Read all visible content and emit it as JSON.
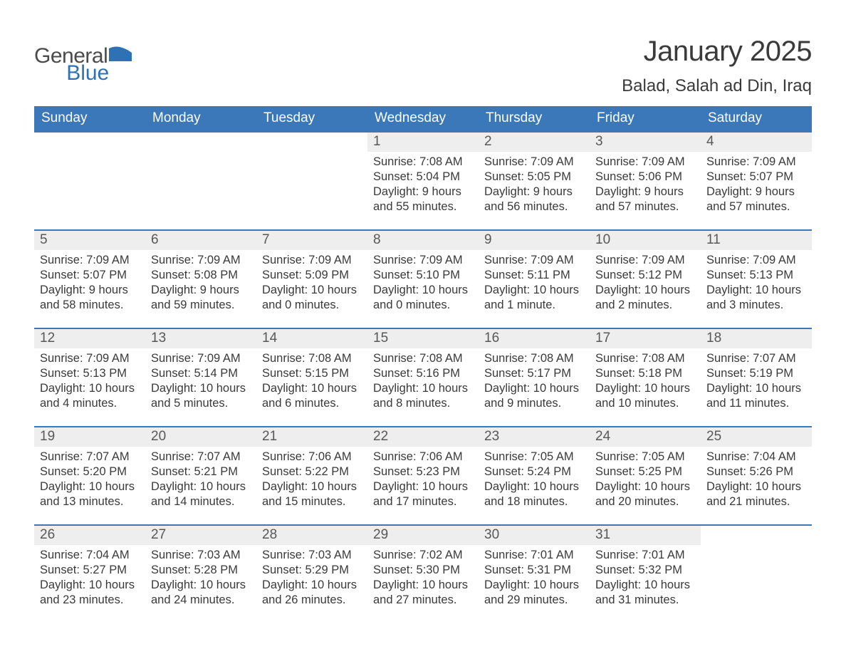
{
  "logo": {
    "word1": "General",
    "word2": "Blue",
    "mark_color": "#2e72b5",
    "text_gray": "#4b4b4b"
  },
  "title": "January 2025",
  "location": "Balad, Salah ad Din, Iraq",
  "colors": {
    "header_bg": "#3a78b9",
    "header_text": "#ffffff",
    "daynum_bg": "#eeeeee",
    "cell_border": "#3a78b9",
    "body_text": "#3a3a3a"
  },
  "weekdays": [
    "Sunday",
    "Monday",
    "Tuesday",
    "Wednesday",
    "Thursday",
    "Friday",
    "Saturday"
  ],
  "weeks": [
    [
      null,
      null,
      null,
      {
        "n": "1",
        "sunrise": "Sunrise: 7:08 AM",
        "sunset": "Sunset: 5:04 PM",
        "daylight": "Daylight: 9 hours and 55 minutes."
      },
      {
        "n": "2",
        "sunrise": "Sunrise: 7:09 AM",
        "sunset": "Sunset: 5:05 PM",
        "daylight": "Daylight: 9 hours and 56 minutes."
      },
      {
        "n": "3",
        "sunrise": "Sunrise: 7:09 AM",
        "sunset": "Sunset: 5:06 PM",
        "daylight": "Daylight: 9 hours and 57 minutes."
      },
      {
        "n": "4",
        "sunrise": "Sunrise: 7:09 AM",
        "sunset": "Sunset: 5:07 PM",
        "daylight": "Daylight: 9 hours and 57 minutes."
      }
    ],
    [
      {
        "n": "5",
        "sunrise": "Sunrise: 7:09 AM",
        "sunset": "Sunset: 5:07 PM",
        "daylight": "Daylight: 9 hours and 58 minutes."
      },
      {
        "n": "6",
        "sunrise": "Sunrise: 7:09 AM",
        "sunset": "Sunset: 5:08 PM",
        "daylight": "Daylight: 9 hours and 59 minutes."
      },
      {
        "n": "7",
        "sunrise": "Sunrise: 7:09 AM",
        "sunset": "Sunset: 5:09 PM",
        "daylight": "Daylight: 10 hours and 0 minutes."
      },
      {
        "n": "8",
        "sunrise": "Sunrise: 7:09 AM",
        "sunset": "Sunset: 5:10 PM",
        "daylight": "Daylight: 10 hours and 0 minutes."
      },
      {
        "n": "9",
        "sunrise": "Sunrise: 7:09 AM",
        "sunset": "Sunset: 5:11 PM",
        "daylight": "Daylight: 10 hours and 1 minute."
      },
      {
        "n": "10",
        "sunrise": "Sunrise: 7:09 AM",
        "sunset": "Sunset: 5:12 PM",
        "daylight": "Daylight: 10 hours and 2 minutes."
      },
      {
        "n": "11",
        "sunrise": "Sunrise: 7:09 AM",
        "sunset": "Sunset: 5:13 PM",
        "daylight": "Daylight: 10 hours and 3 minutes."
      }
    ],
    [
      {
        "n": "12",
        "sunrise": "Sunrise: 7:09 AM",
        "sunset": "Sunset: 5:13 PM",
        "daylight": "Daylight: 10 hours and 4 minutes."
      },
      {
        "n": "13",
        "sunrise": "Sunrise: 7:09 AM",
        "sunset": "Sunset: 5:14 PM",
        "daylight": "Daylight: 10 hours and 5 minutes."
      },
      {
        "n": "14",
        "sunrise": "Sunrise: 7:08 AM",
        "sunset": "Sunset: 5:15 PM",
        "daylight": "Daylight: 10 hours and 6 minutes."
      },
      {
        "n": "15",
        "sunrise": "Sunrise: 7:08 AM",
        "sunset": "Sunset: 5:16 PM",
        "daylight": "Daylight: 10 hours and 8 minutes."
      },
      {
        "n": "16",
        "sunrise": "Sunrise: 7:08 AM",
        "sunset": "Sunset: 5:17 PM",
        "daylight": "Daylight: 10 hours and 9 minutes."
      },
      {
        "n": "17",
        "sunrise": "Sunrise: 7:08 AM",
        "sunset": "Sunset: 5:18 PM",
        "daylight": "Daylight: 10 hours and 10 minutes."
      },
      {
        "n": "18",
        "sunrise": "Sunrise: 7:07 AM",
        "sunset": "Sunset: 5:19 PM",
        "daylight": "Daylight: 10 hours and 11 minutes."
      }
    ],
    [
      {
        "n": "19",
        "sunrise": "Sunrise: 7:07 AM",
        "sunset": "Sunset: 5:20 PM",
        "daylight": "Daylight: 10 hours and 13 minutes."
      },
      {
        "n": "20",
        "sunrise": "Sunrise: 7:07 AM",
        "sunset": "Sunset: 5:21 PM",
        "daylight": "Daylight: 10 hours and 14 minutes."
      },
      {
        "n": "21",
        "sunrise": "Sunrise: 7:06 AM",
        "sunset": "Sunset: 5:22 PM",
        "daylight": "Daylight: 10 hours and 15 minutes."
      },
      {
        "n": "22",
        "sunrise": "Sunrise: 7:06 AM",
        "sunset": "Sunset: 5:23 PM",
        "daylight": "Daylight: 10 hours and 17 minutes."
      },
      {
        "n": "23",
        "sunrise": "Sunrise: 7:05 AM",
        "sunset": "Sunset: 5:24 PM",
        "daylight": "Daylight: 10 hours and 18 minutes."
      },
      {
        "n": "24",
        "sunrise": "Sunrise: 7:05 AM",
        "sunset": "Sunset: 5:25 PM",
        "daylight": "Daylight: 10 hours and 20 minutes."
      },
      {
        "n": "25",
        "sunrise": "Sunrise: 7:04 AM",
        "sunset": "Sunset: 5:26 PM",
        "daylight": "Daylight: 10 hours and 21 minutes."
      }
    ],
    [
      {
        "n": "26",
        "sunrise": "Sunrise: 7:04 AM",
        "sunset": "Sunset: 5:27 PM",
        "daylight": "Daylight: 10 hours and 23 minutes."
      },
      {
        "n": "27",
        "sunrise": "Sunrise: 7:03 AM",
        "sunset": "Sunset: 5:28 PM",
        "daylight": "Daylight: 10 hours and 24 minutes."
      },
      {
        "n": "28",
        "sunrise": "Sunrise: 7:03 AM",
        "sunset": "Sunset: 5:29 PM",
        "daylight": "Daylight: 10 hours and 26 minutes."
      },
      {
        "n": "29",
        "sunrise": "Sunrise: 7:02 AM",
        "sunset": "Sunset: 5:30 PM",
        "daylight": "Daylight: 10 hours and 27 minutes."
      },
      {
        "n": "30",
        "sunrise": "Sunrise: 7:01 AM",
        "sunset": "Sunset: 5:31 PM",
        "daylight": "Daylight: 10 hours and 29 minutes."
      },
      {
        "n": "31",
        "sunrise": "Sunrise: 7:01 AM",
        "sunset": "Sunset: 5:32 PM",
        "daylight": "Daylight: 10 hours and 31 minutes."
      },
      null
    ]
  ]
}
